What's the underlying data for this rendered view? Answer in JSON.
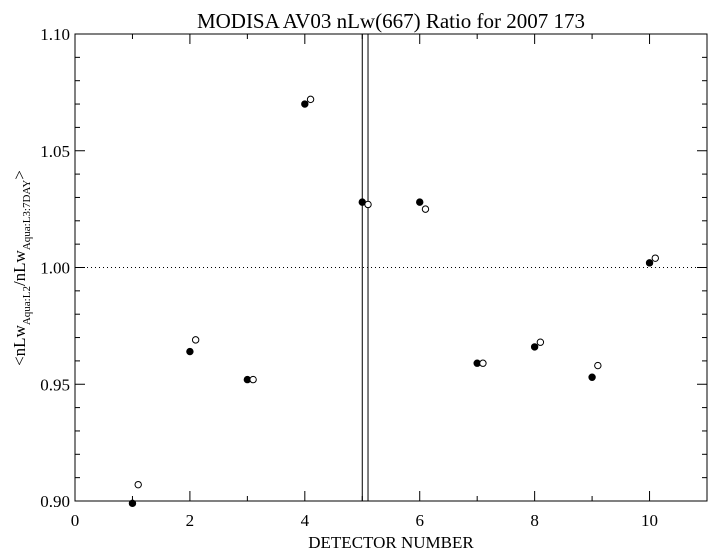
{
  "chart_data": {
    "type": "scatter",
    "title": "MODISA AV03 nLw(667) Ratio for 2007 173",
    "xlabel": "DETECTOR NUMBER",
    "ylabel": {
      "open": "<nLw",
      "sub1": "Aqua:L2",
      "mid": "/nLw",
      "sub2": "Aqua:L3:7DAY",
      "close": ">"
    },
    "xlim": [
      0,
      11
    ],
    "ylim": [
      0.9,
      1.1
    ],
    "xticks": [
      0,
      2,
      4,
      6,
      8,
      10
    ],
    "xtick_labels": [
      "0",
      "2",
      "4",
      "6",
      "8",
      "10"
    ],
    "yticks": [
      0.9,
      0.95,
      1.0,
      1.05,
      1.1
    ],
    "ytick_labels": [
      "0.90",
      "0.95",
      "1.00",
      "1.05",
      "1.10"
    ],
    "reference_line": {
      "y": 1.0,
      "style": "dotted"
    },
    "vertical_lines": [
      5.0,
      5.1
    ],
    "series": [
      {
        "marker": "filled-circle",
        "x": [
          1,
          2,
          3,
          4,
          5,
          6,
          7,
          8,
          9,
          10
        ],
        "y": [
          0.899,
          0.964,
          0.952,
          1.07,
          1.028,
          1.028,
          0.959,
          0.966,
          0.953,
          1.002
        ]
      },
      {
        "marker": "open-circle",
        "x": [
          1.1,
          2.1,
          3.1,
          4.1,
          5.1,
          6.1,
          7.1,
          8.1,
          9.1,
          10.1
        ],
        "y": [
          0.907,
          0.969,
          0.952,
          1.072,
          1.027,
          1.025,
          0.959,
          0.968,
          0.958,
          1.004
        ]
      }
    ]
  }
}
